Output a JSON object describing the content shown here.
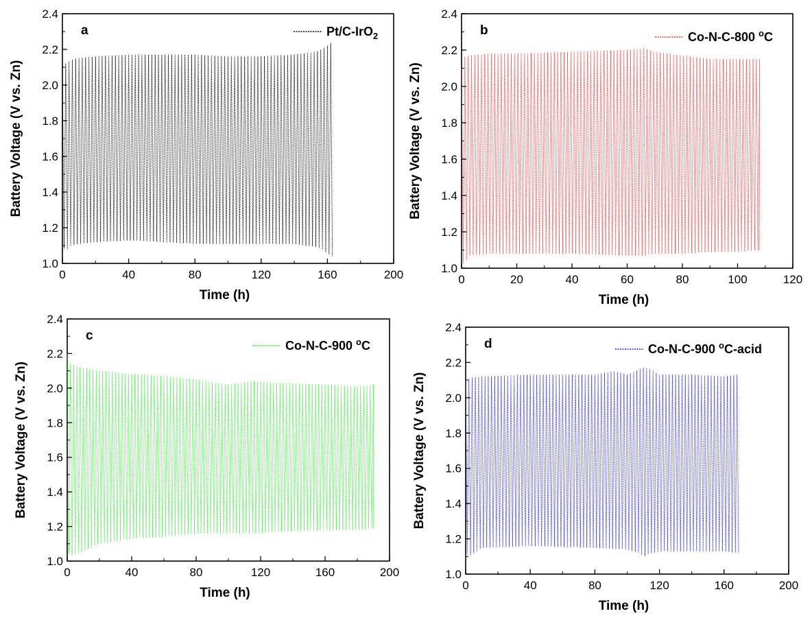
{
  "chart_data": [
    {
      "type": "line",
      "panel_label": "a",
      "xlabel": "Time (h)",
      "ylabel": "Battery Voltage (V vs. Zn)",
      "xlim": [
        0,
        200
      ],
      "ylim": [
        1.0,
        2.4
      ],
      "xticks": [
        0,
        40,
        80,
        120,
        160,
        200
      ],
      "yticks": [
        1.0,
        1.2,
        1.4,
        1.6,
        1.8,
        2.0,
        2.2,
        2.4
      ],
      "series": [
        {
          "name": "Pt/C-IrO2",
          "color": "#000000",
          "x_end": 163,
          "cycle_period_h": 2,
          "upper_envelope": {
            "x": [
              0,
              2,
              5,
              10,
              20,
              40,
              60,
              80,
              100,
              120,
              140,
              155,
              163
            ],
            "y": [
              2.08,
              2.12,
              2.14,
              2.15,
              2.16,
              2.17,
              2.17,
              2.17,
              2.16,
              2.16,
              2.17,
              2.19,
              2.24
            ]
          },
          "lower_envelope": {
            "x": [
              0,
              2,
              5,
              10,
              20,
              40,
              60,
              80,
              100,
              120,
              140,
              155,
              163
            ],
            "y": [
              1.1,
              1.07,
              1.1,
              1.11,
              1.12,
              1.13,
              1.12,
              1.11,
              1.11,
              1.11,
              1.11,
              1.09,
              1.04
            ]
          }
        }
      ]
    },
    {
      "type": "line",
      "panel_label": "b",
      "xlabel": "Time (h)",
      "ylabel": "Battery Voltage (V vs. Zn)",
      "xlim": [
        0,
        120
      ],
      "ylim": [
        1.0,
        2.4
      ],
      "xticks": [
        0,
        20,
        40,
        60,
        80,
        100,
        120
      ],
      "yticks": [
        1.0,
        1.2,
        1.4,
        1.6,
        1.8,
        2.0,
        2.2,
        2.4
      ],
      "series": [
        {
          "name": "Co-N-C-800 °C",
          "color": "#ff3030",
          "x_end": 108,
          "cycle_period_h": 1.2,
          "upper_envelope": {
            "x": [
              0,
              1,
              3,
              10,
              20,
              40,
              60,
              66,
              70,
              80,
              90,
              100,
              108
            ],
            "y": [
              2.1,
              2.16,
              2.17,
              2.18,
              2.18,
              2.19,
              2.2,
              2.21,
              2.19,
              2.17,
              2.15,
              2.15,
              2.15
            ]
          },
          "lower_envelope": {
            "x": [
              0,
              1,
              3,
              10,
              20,
              40,
              60,
              66,
              70,
              80,
              90,
              100,
              108
            ],
            "y": [
              1.02,
              1.03,
              1.07,
              1.08,
              1.08,
              1.08,
              1.07,
              1.07,
              1.08,
              1.08,
              1.09,
              1.09,
              1.1
            ]
          }
        }
      ]
    },
    {
      "type": "line",
      "panel_label": "c",
      "xlabel": "Time (h)",
      "ylabel": "Battery Voltage (V vs. Zn)",
      "xlim": [
        0,
        200
      ],
      "ylim": [
        1.0,
        2.4
      ],
      "xticks": [
        0,
        40,
        80,
        120,
        160,
        200
      ],
      "yticks": [
        1.0,
        1.2,
        1.4,
        1.6,
        1.8,
        2.0,
        2.2,
        2.4
      ],
      "series": [
        {
          "name": "Co-N-C-900 °C",
          "color": "#33ee33",
          "x_end": 190,
          "cycle_period_h": 2,
          "upper_envelope": {
            "x": [
              0,
              2,
              8,
              20,
              40,
              60,
              80,
              100,
              115,
              130,
              160,
              180,
              190
            ],
            "y": [
              2.2,
              2.14,
              2.12,
              2.1,
              2.08,
              2.07,
              2.05,
              2.02,
              2.04,
              2.03,
              2.02,
              2.01,
              2.02
            ]
          },
          "lower_envelope": {
            "x": [
              0,
              2,
              8,
              20,
              40,
              60,
              80,
              100,
              115,
              130,
              160,
              180,
              190
            ],
            "y": [
              1.06,
              1.03,
              1.05,
              1.1,
              1.13,
              1.14,
              1.16,
              1.16,
              1.16,
              1.17,
              1.18,
              1.18,
              1.19
            ]
          }
        }
      ]
    },
    {
      "type": "line",
      "panel_label": "d",
      "xlabel": "Time (h)",
      "ylabel": "Battery Voltage (V vs. Zn)",
      "xlim": [
        0,
        200
      ],
      "ylim": [
        1.0,
        2.4
      ],
      "xticks": [
        0,
        40,
        80,
        120,
        160,
        200
      ],
      "yticks": [
        1.0,
        1.2,
        1.4,
        1.6,
        1.8,
        2.0,
        2.2,
        2.4
      ],
      "series": [
        {
          "name": "Co-N-C-900 °C-acid",
          "color": "#2222ee",
          "x_end": 169,
          "cycle_period_h": 2,
          "upper_envelope": {
            "x": [
              0,
              2,
              10,
              40,
              80,
              92,
              100,
              110,
              115,
              120,
              140,
              160,
              169
            ],
            "y": [
              2.1,
              2.11,
              2.12,
              2.13,
              2.13,
              2.15,
              2.13,
              2.17,
              2.16,
              2.13,
              2.13,
              2.12,
              2.13
            ]
          },
          "lower_envelope": {
            "x": [
              0,
              2,
              10,
              40,
              80,
              100,
              108,
              110,
              115,
              120,
              140,
              160,
              169
            ],
            "y": [
              1.13,
              1.1,
              1.15,
              1.16,
              1.15,
              1.14,
              1.12,
              1.1,
              1.12,
              1.13,
              1.13,
              1.13,
              1.12
            ]
          }
        }
      ]
    }
  ]
}
